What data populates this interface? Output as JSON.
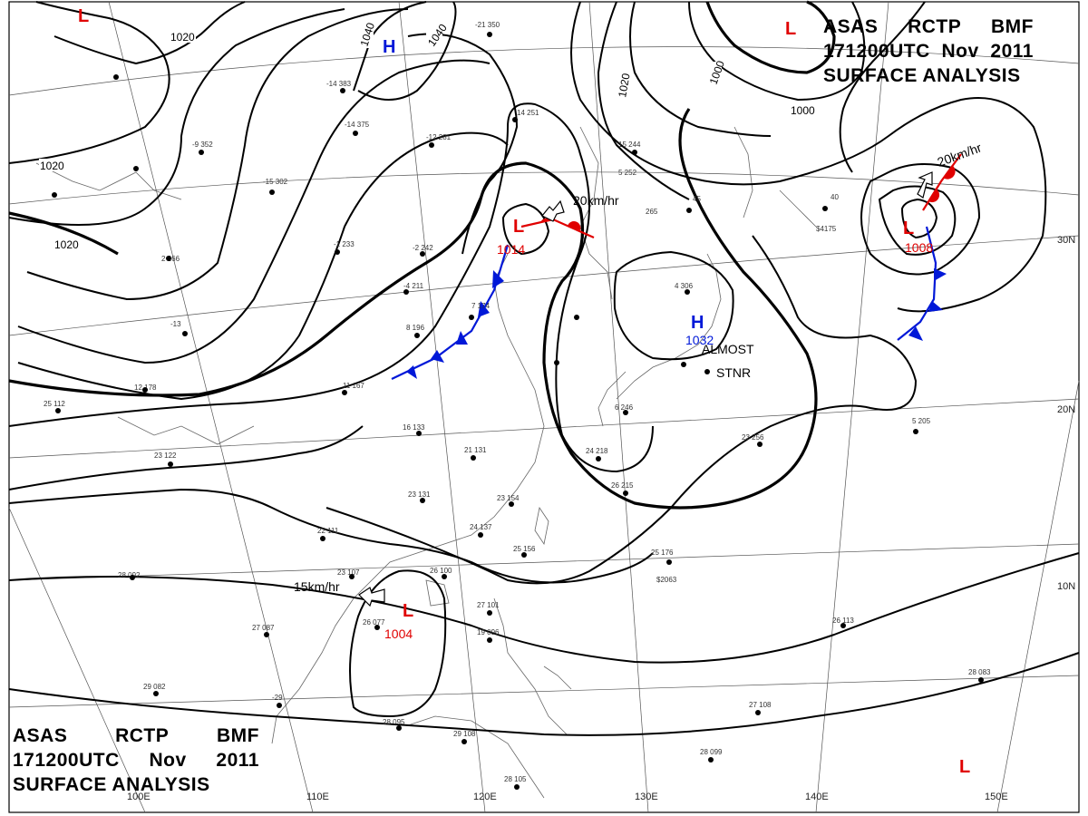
{
  "chart_title": {
    "line1": [
      "ASAS",
      "RCTP",
      "BMF"
    ],
    "line2": [
      "171200UTC",
      "Nov",
      "2011"
    ],
    "line3": "SURFACE ANALYSIS"
  },
  "isobar_labels": [
    "1020",
    "1040",
    "1040",
    "1020",
    "1020",
    "1020",
    "1000",
    "1000"
  ],
  "grid_labels": {
    "lat": [
      "30N",
      "20N",
      "10N"
    ],
    "lon": [
      "110E",
      "120E",
      "130E",
      "140E",
      "150E",
      "100E"
    ]
  },
  "pressure_centers": [
    {
      "type": "H",
      "value": "",
      "color": "#0018d8"
    },
    {
      "type": "L",
      "value": "",
      "color": "#e00000"
    },
    {
      "type": "L",
      "value": "",
      "color": "#e00000"
    },
    {
      "type": "L",
      "value": "1014",
      "color": "#e00000"
    },
    {
      "type": "H",
      "value": "1032",
      "color": "#0018d8"
    },
    {
      "type": "L",
      "value": "1008",
      "color": "#e00000"
    },
    {
      "type": "L",
      "value": "1004",
      "color": "#e00000"
    },
    {
      "type": "L",
      "value": "",
      "color": "#e00000"
    }
  ],
  "motion_labels": [
    "20km/hr",
    "20km/hr",
    "15km/hr"
  ],
  "annotations": [
    "ALMOST",
    "STNR"
  ],
  "station_plots": [
    "-21 350",
    "-14 383",
    "-12 281",
    "-14 375",
    "-9 352",
    "-15 302",
    "-1 233",
    "-2 242",
    "-13",
    "2 266",
    "-4 211",
    "8 196",
    "7 174",
    "14 251",
    "5 252",
    "6 246",
    "11 167",
    "12 178",
    "16 133",
    "21 131",
    "23 131",
    "22 111",
    "23 107",
    "26 100",
    "26 077",
    "27 087",
    "28 092",
    "29 082",
    "-29",
    "28 095",
    "29 108",
    "28 105",
    "27 101",
    "19 096",
    "23 154",
    "24 137",
    "25 156",
    "26 215",
    "24 218",
    "23 256",
    "25 176",
    "26 113",
    "27 108",
    "28 099",
    "28 083",
    "25 112",
    "23 122",
    "15 244",
    "4 306",
    "5 205",
    "40",
    "45",
    "265",
    "$4175",
    "$2063"
  ],
  "colors": {
    "high": "#0018d8",
    "low": "#e00000",
    "cold_front": "#0018d8",
    "warm_front": "#e00000",
    "isobar": "#000000",
    "grid": "#555555",
    "coast": "#666666"
  }
}
